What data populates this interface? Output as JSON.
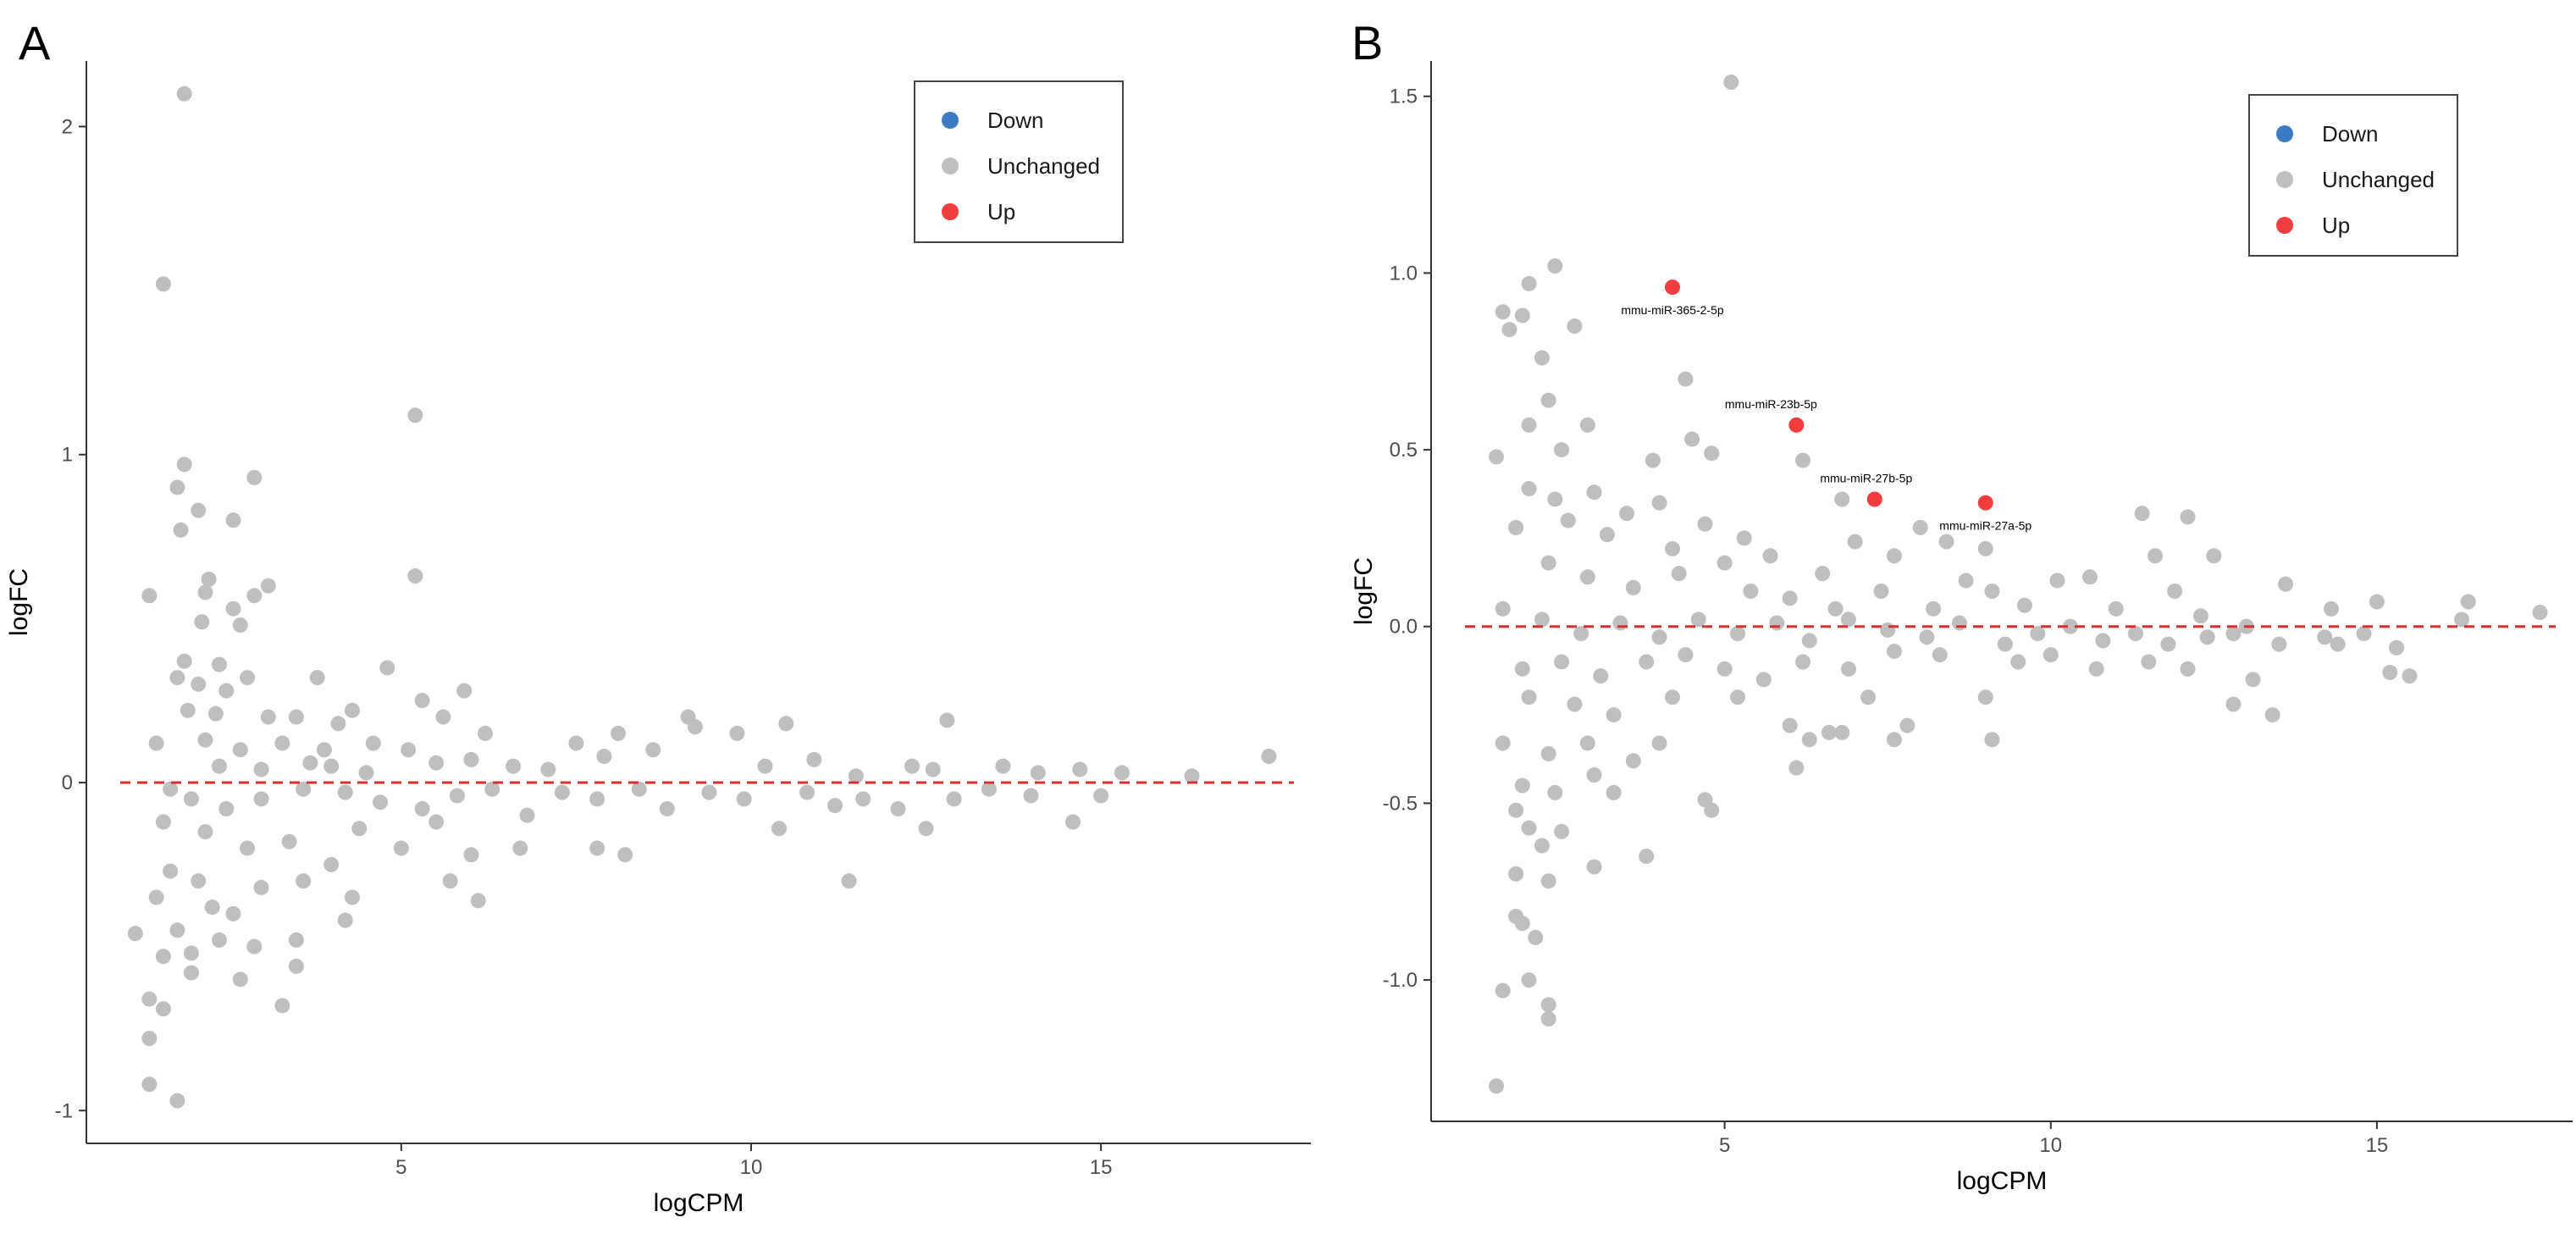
{
  "chart_data": [
    {
      "panel_label": "A",
      "type": "scatter",
      "xlabel": "logCPM",
      "ylabel": "logFC",
      "xlim": [
        0.5,
        18
      ],
      "ylim": [
        -1.1,
        2.2
      ],
      "x_ticks": [
        5,
        10,
        15
      ],
      "y_ticks": [
        -1,
        0,
        1,
        2
      ],
      "grid": false,
      "legend_position": "top-right",
      "legend": [
        {
          "label": "Down",
          "color": "#3a7cc4"
        },
        {
          "label": "Unchanged",
          "color": "#bfbfbf"
        },
        {
          "label": "Up",
          "color": "#f03c3c"
        }
      ],
      "reference_line": {
        "y": 0,
        "color": "#d9302c",
        "style": "dashed"
      },
      "annotations": [],
      "points": [
        [
          1.9,
          2.1
        ],
        [
          1.6,
          1.52
        ],
        [
          5.2,
          1.12
        ],
        [
          2.9,
          0.93
        ],
        [
          1.9,
          0.97
        ],
        [
          1.8,
          0.9
        ],
        [
          2.1,
          0.83
        ],
        [
          2.6,
          0.8
        ],
        [
          1.85,
          0.77
        ],
        [
          2.25,
          0.62
        ],
        [
          3.1,
          0.6
        ],
        [
          5.2,
          0.63
        ],
        [
          2.2,
          0.58
        ],
        [
          1.4,
          0.57
        ],
        [
          2.9,
          0.57
        ],
        [
          2.6,
          0.53
        ],
        [
          2.15,
          0.49
        ],
        [
          2.7,
          0.48
        ],
        [
          1.9,
          0.37
        ],
        [
          2.4,
          0.36
        ],
        [
          1.8,
          0.32
        ],
        [
          2.1,
          0.3
        ],
        [
          2.8,
          0.32
        ],
        [
          3.8,
          0.32
        ],
        [
          2.5,
          0.28
        ],
        [
          4.8,
          0.35
        ],
        [
          1.95,
          0.22
        ],
        [
          2.35,
          0.21
        ],
        [
          3.1,
          0.2
        ],
        [
          3.5,
          0.2
        ],
        [
          4.3,
          0.22
        ],
        [
          4.1,
          0.18
        ],
        [
          5.3,
          0.25
        ],
        [
          5.9,
          0.28
        ],
        [
          6.2,
          0.15
        ],
        [
          5.6,
          0.2
        ],
        [
          4.6,
          0.12
        ],
        [
          2.2,
          0.13
        ],
        [
          2.7,
          0.1
        ],
        [
          3.3,
          0.12
        ],
        [
          3.9,
          0.1
        ],
        [
          4.0,
          0.05
        ],
        [
          1.5,
          0.12
        ],
        [
          2.4,
          0.05
        ],
        [
          3.0,
          0.04
        ],
        [
          3.7,
          0.06
        ],
        [
          4.5,
          0.03
        ],
        [
          5.1,
          0.1
        ],
        [
          5.5,
          0.06
        ],
        [
          6.0,
          0.07
        ],
        [
          6.6,
          0.05
        ],
        [
          7.1,
          0.04
        ],
        [
          7.5,
          0.12
        ],
        [
          7.9,
          0.08
        ],
        [
          8.1,
          0.15
        ],
        [
          8.6,
          0.1
        ],
        [
          9.1,
          0.2
        ],
        [
          9.2,
          0.17
        ],
        [
          9.8,
          0.15
        ],
        [
          10.2,
          0.05
        ],
        [
          10.5,
          0.18
        ],
        [
          10.9,
          0.07
        ],
        [
          11.5,
          0.02
        ],
        [
          12.3,
          0.05
        ],
        [
          12.6,
          0.04
        ],
        [
          12.8,
          0.19
        ],
        [
          13.6,
          0.05
        ],
        [
          14.1,
          0.03
        ],
        [
          14.7,
          0.04
        ],
        [
          15.3,
          0.03
        ],
        [
          16.3,
          0.02
        ],
        [
          17.4,
          0.08
        ],
        [
          1.7,
          -0.02
        ],
        [
          2.0,
          -0.05
        ],
        [
          2.5,
          -0.08
        ],
        [
          3.0,
          -0.05
        ],
        [
          3.6,
          -0.02
        ],
        [
          4.2,
          -0.03
        ],
        [
          4.7,
          -0.06
        ],
        [
          5.3,
          -0.08
        ],
        [
          5.8,
          -0.04
        ],
        [
          6.3,
          -0.02
        ],
        [
          6.8,
          -0.1
        ],
        [
          7.3,
          -0.03
        ],
        [
          7.8,
          -0.05
        ],
        [
          8.4,
          -0.02
        ],
        [
          8.8,
          -0.08
        ],
        [
          9.4,
          -0.03
        ],
        [
          9.9,
          -0.05
        ],
        [
          10.4,
          -0.14
        ],
        [
          10.8,
          -0.03
        ],
        [
          11.2,
          -0.07
        ],
        [
          11.6,
          -0.05
        ],
        [
          12.1,
          -0.08
        ],
        [
          12.5,
          -0.14
        ],
        [
          12.9,
          -0.05
        ],
        [
          13.4,
          -0.02
        ],
        [
          14.0,
          -0.04
        ],
        [
          14.6,
          -0.12
        ],
        [
          15.0,
          -0.04
        ],
        [
          1.6,
          -0.12
        ],
        [
          2.2,
          -0.15
        ],
        [
          2.8,
          -0.2
        ],
        [
          3.4,
          -0.18
        ],
        [
          4.0,
          -0.25
        ],
        [
          4.4,
          -0.14
        ],
        [
          5.0,
          -0.2
        ],
        [
          5.5,
          -0.12
        ],
        [
          6.0,
          -0.22
        ],
        [
          6.7,
          -0.2
        ],
        [
          7.8,
          -0.2
        ],
        [
          8.2,
          -0.22
        ],
        [
          11.4,
          -0.3
        ],
        [
          5.7,
          -0.3
        ],
        [
          6.1,
          -0.36
        ],
        [
          4.3,
          -0.35
        ],
        [
          1.7,
          -0.27
        ],
        [
          2.1,
          -0.3
        ],
        [
          2.3,
          -0.38
        ],
        [
          2.6,
          -0.4
        ],
        [
          3.0,
          -0.32
        ],
        [
          3.6,
          -0.3
        ],
        [
          4.2,
          -0.42
        ],
        [
          1.5,
          -0.35
        ],
        [
          1.8,
          -0.45
        ],
        [
          2.0,
          -0.52
        ],
        [
          2.4,
          -0.48
        ],
        [
          2.9,
          -0.5
        ],
        [
          3.5,
          -0.48
        ],
        [
          1.2,
          -0.46
        ],
        [
          1.6,
          -0.53
        ],
        [
          2.0,
          -0.58
        ],
        [
          2.7,
          -0.6
        ],
        [
          3.5,
          -0.56
        ],
        [
          1.4,
          -0.66
        ],
        [
          1.6,
          -0.69
        ],
        [
          3.3,
          -0.68
        ],
        [
          1.4,
          -0.78
        ],
        [
          1.4,
          -0.92
        ],
        [
          1.8,
          -0.97
        ]
      ]
    },
    {
      "panel_label": "B",
      "type": "scatter",
      "xlabel": "logCPM",
      "ylabel": "logFC",
      "xlim": [
        0.5,
        18
      ],
      "ylim": [
        -1.4,
        1.6
      ],
      "x_ticks": [
        5,
        10,
        15
      ],
      "y_ticks": [
        -1.0,
        -0.5,
        0.0,
        0.5,
        1.0,
        1.5
      ],
      "grid": false,
      "legend_position": "top-right",
      "legend": [
        {
          "label": "Down",
          "color": "#3a7cc4"
        },
        {
          "label": "Unchanged",
          "color": "#bfbfbf"
        },
        {
          "label": "Up",
          "color": "#f03c3c"
        }
      ],
      "reference_line": {
        "y": 0,
        "color": "#d9302c",
        "style": "dashed"
      },
      "annotations": [
        {
          "label": "mmu-miR-365-2-5p",
          "x": 4.2,
          "y": 0.96
        },
        {
          "label": "mmu-miR-23b-5p",
          "x": 6.1,
          "y": 0.57
        },
        {
          "label": "mmu-miR-27b-5p",
          "x": 7.3,
          "y": 0.36
        },
        {
          "label": "mmu-miR-27a-5p",
          "x": 9.0,
          "y": 0.35
        }
      ],
      "up_points": [
        [
          4.2,
          0.96
        ],
        [
          6.1,
          0.57
        ],
        [
          7.3,
          0.36
        ],
        [
          9.0,
          0.35
        ]
      ],
      "points": [
        [
          5.1,
          1.54
        ],
        [
          2.4,
          1.02
        ],
        [
          1.6,
          0.89
        ],
        [
          1.9,
          0.88
        ],
        [
          2.0,
          0.97
        ],
        [
          1.7,
          0.84
        ],
        [
          2.2,
          0.76
        ],
        [
          2.7,
          0.85
        ],
        [
          2.3,
          0.64
        ],
        [
          4.4,
          0.7
        ],
        [
          2.0,
          0.57
        ],
        [
          1.5,
          0.48
        ],
        [
          2.9,
          0.57
        ],
        [
          2.5,
          0.5
        ],
        [
          3.9,
          0.47
        ],
        [
          4.5,
          0.53
        ],
        [
          4.8,
          0.49
        ],
        [
          6.2,
          0.47
        ],
        [
          2.0,
          0.39
        ],
        [
          2.4,
          0.36
        ],
        [
          3.0,
          0.38
        ],
        [
          3.5,
          0.32
        ],
        [
          4.0,
          0.35
        ],
        [
          4.7,
          0.29
        ],
        [
          5.3,
          0.25
        ],
        [
          6.8,
          0.36
        ],
        [
          1.8,
          0.28
        ],
        [
          2.6,
          0.3
        ],
        [
          3.2,
          0.26
        ],
        [
          4.2,
          0.22
        ],
        [
          5.0,
          0.18
        ],
        [
          5.7,
          0.2
        ],
        [
          6.5,
          0.15
        ],
        [
          7.0,
          0.24
        ],
        [
          7.6,
          0.2
        ],
        [
          8.0,
          0.28
        ],
        [
          8.4,
          0.24
        ],
        [
          9.0,
          0.22
        ],
        [
          2.3,
          0.18
        ],
        [
          2.9,
          0.14
        ],
        [
          3.6,
          0.11
        ],
        [
          4.3,
          0.15
        ],
        [
          5.4,
          0.1
        ],
        [
          6.0,
          0.08
        ],
        [
          6.7,
          0.05
        ],
        [
          7.4,
          0.1
        ],
        [
          8.2,
          0.05
        ],
        [
          8.7,
          0.13
        ],
        [
          9.1,
          0.1
        ],
        [
          9.6,
          0.06
        ],
        [
          10.1,
          0.13
        ],
        [
          10.6,
          0.14
        ],
        [
          11.0,
          0.05
        ],
        [
          11.4,
          0.32
        ],
        [
          12.1,
          0.31
        ],
        [
          11.6,
          0.2
        ],
        [
          12.5,
          0.2
        ],
        [
          13.6,
          0.12
        ],
        [
          14.3,
          0.05
        ],
        [
          15.0,
          0.07
        ],
        [
          16.4,
          0.07
        ],
        [
          17.5,
          0.04
        ],
        [
          11.9,
          0.1
        ],
        [
          12.3,
          0.03
        ],
        [
          13.0,
          0.0
        ],
        [
          1.6,
          0.05
        ],
        [
          2.2,
          0.02
        ],
        [
          2.8,
          -0.02
        ],
        [
          3.4,
          0.01
        ],
        [
          4.0,
          -0.03
        ],
        [
          4.6,
          0.02
        ],
        [
          5.2,
          -0.02
        ],
        [
          5.8,
          0.01
        ],
        [
          6.3,
          -0.04
        ],
        [
          6.9,
          0.02
        ],
        [
          7.5,
          -0.01
        ],
        [
          8.1,
          -0.03
        ],
        [
          8.6,
          0.01
        ],
        [
          9.3,
          -0.05
        ],
        [
          9.8,
          -0.02
        ],
        [
          10.3,
          0.0
        ],
        [
          10.8,
          -0.04
        ],
        [
          11.3,
          -0.02
        ],
        [
          11.8,
          -0.05
        ],
        [
          12.4,
          -0.03
        ],
        [
          12.8,
          -0.02
        ],
        [
          13.5,
          -0.05
        ],
        [
          14.2,
          -0.03
        ],
        [
          14.8,
          -0.02
        ],
        [
          15.3,
          -0.06
        ],
        [
          16.3,
          0.02
        ],
        [
          1.9,
          -0.12
        ],
        [
          2.5,
          -0.1
        ],
        [
          3.1,
          -0.14
        ],
        [
          3.8,
          -0.1
        ],
        [
          4.4,
          -0.08
        ],
        [
          5.0,
          -0.12
        ],
        [
          5.6,
          -0.15
        ],
        [
          6.2,
          -0.1
        ],
        [
          6.9,
          -0.12
        ],
        [
          7.6,
          -0.07
        ],
        [
          8.3,
          -0.08
        ],
        [
          9.5,
          -0.1
        ],
        [
          10.0,
          -0.08
        ],
        [
          10.7,
          -0.12
        ],
        [
          11.5,
          -0.1
        ],
        [
          12.1,
          -0.12
        ],
        [
          13.1,
          -0.15
        ],
        [
          14.4,
          -0.05
        ],
        [
          15.2,
          -0.13
        ],
        [
          15.5,
          -0.14
        ],
        [
          2.0,
          -0.2
        ],
        [
          2.7,
          -0.22
        ],
        [
          3.3,
          -0.25
        ],
        [
          4.2,
          -0.2
        ],
        [
          5.2,
          -0.2
        ],
        [
          6.0,
          -0.28
        ],
        [
          6.6,
          -0.3
        ],
        [
          7.2,
          -0.2
        ],
        [
          7.8,
          -0.28
        ],
        [
          9.0,
          -0.2
        ],
        [
          12.8,
          -0.22
        ],
        [
          13.4,
          -0.25
        ],
        [
          1.6,
          -0.33
        ],
        [
          2.3,
          -0.36
        ],
        [
          2.9,
          -0.33
        ],
        [
          3.6,
          -0.38
        ],
        [
          4.0,
          -0.33
        ],
        [
          6.3,
          -0.32
        ],
        [
          6.8,
          -0.3
        ],
        [
          7.6,
          -0.32
        ],
        [
          9.1,
          -0.32
        ],
        [
          6.1,
          -0.4
        ],
        [
          1.9,
          -0.45
        ],
        [
          2.4,
          -0.47
        ],
        [
          3.0,
          -0.42
        ],
        [
          3.3,
          -0.47
        ],
        [
          4.7,
          -0.49
        ],
        [
          4.8,
          -0.52
        ],
        [
          1.8,
          -0.52
        ],
        [
          2.0,
          -0.57
        ],
        [
          2.2,
          -0.62
        ],
        [
          2.5,
          -0.58
        ],
        [
          3.8,
          -0.65
        ],
        [
          3.0,
          -0.68
        ],
        [
          1.8,
          -0.7
        ],
        [
          2.3,
          -0.72
        ],
        [
          1.8,
          -0.82
        ],
        [
          1.9,
          -0.84
        ],
        [
          2.1,
          -0.88
        ],
        [
          2.0,
          -1.0
        ],
        [
          1.6,
          -1.03
        ],
        [
          2.3,
          -1.07
        ],
        [
          2.3,
          -1.11
        ],
        [
          1.5,
          -1.3
        ]
      ]
    }
  ]
}
